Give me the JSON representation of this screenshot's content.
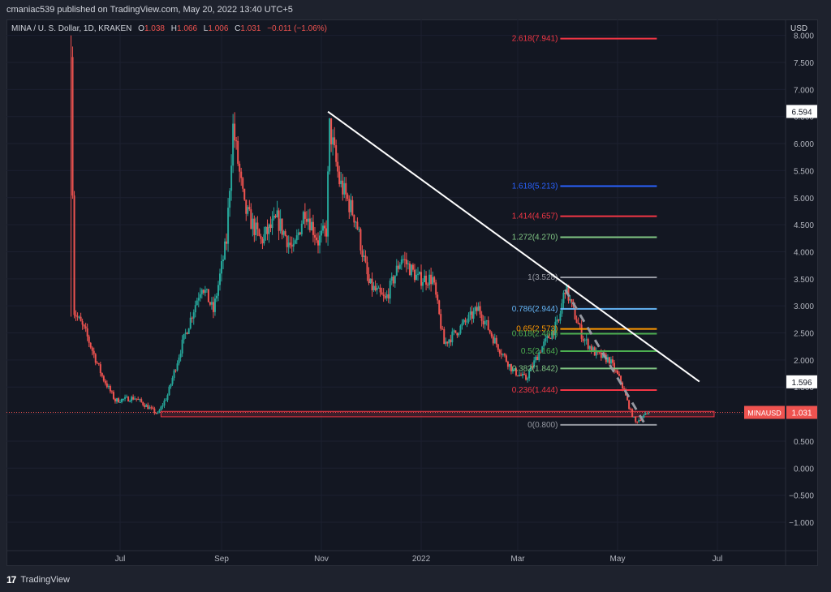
{
  "header": {
    "publisher_line": "cmaniac539 published on TradingView.com, May 20, 2022 13:40 UTC+5"
  },
  "footer": {
    "logo": "17",
    "brand": "TradingView"
  },
  "chart_data": {
    "type": "candlestick",
    "symbol_line": {
      "symbol": "MINA / U. S. Dollar, 1D, KRAKEN",
      "o_label": "O",
      "o": "1.038",
      "h_label": "H",
      "h": "1.066",
      "l_label": "L",
      "l": "1.006",
      "c_label": "C",
      "c": "1.031",
      "change": "−0.011 (−1.06%)"
    },
    "currency": "USD",
    "ylim": [
      -1.6,
      8.0
    ],
    "y_ticks": [
      "8.000",
      "7.500",
      "7.000",
      "6.500",
      "6.000",
      "5.500",
      "5.000",
      "4.500",
      "4.000",
      "3.500",
      "3.000",
      "2.500",
      "2.000",
      "1.500",
      "1.000",
      "0.500",
      "0.000",
      "−0.500",
      "−1.000"
    ],
    "x_ticks": [
      {
        "label": "Jul",
        "date": "2021-07-01"
      },
      {
        "label": "Sep",
        "date": "2021-09-01"
      },
      {
        "label": "Nov",
        "date": "2021-11-01"
      },
      {
        "label": "2022",
        "date": "2022-01-01"
      },
      {
        "label": "Mar",
        "date": "2022-03-01"
      },
      {
        "label": "May",
        "date": "2022-05-01"
      },
      {
        "label": "Jul",
        "date": "2022-07-01"
      }
    ],
    "price_anchors": [
      {
        "date": "2021-06-01",
        "price": 7.6
      },
      {
        "date": "2021-06-03",
        "price": 2.9
      },
      {
        "date": "2021-06-10",
        "price": 2.5
      },
      {
        "date": "2021-06-20",
        "price": 1.7
      },
      {
        "date": "2021-06-28",
        "price": 1.25
      },
      {
        "date": "2021-07-10",
        "price": 1.3
      },
      {
        "date": "2021-07-24",
        "price": 1.0
      },
      {
        "date": "2021-07-30",
        "price": 1.35
      },
      {
        "date": "2021-08-08",
        "price": 2.3
      },
      {
        "date": "2021-08-20",
        "price": 3.4
      },
      {
        "date": "2021-08-27",
        "price": 2.9
      },
      {
        "date": "2021-09-04",
        "price": 4.2
      },
      {
        "date": "2021-09-08",
        "price": 6.3
      },
      {
        "date": "2021-09-15",
        "price": 4.8
      },
      {
        "date": "2021-09-25",
        "price": 4.2
      },
      {
        "date": "2021-10-05",
        "price": 4.6
      },
      {
        "date": "2021-10-15",
        "price": 4.0
      },
      {
        "date": "2021-10-22",
        "price": 4.8
      },
      {
        "date": "2021-10-30",
        "price": 4.2
      },
      {
        "date": "2021-11-04",
        "price": 4.4
      },
      {
        "date": "2021-11-06",
        "price": 6.3
      },
      {
        "date": "2021-11-12",
        "price": 5.3
      },
      {
        "date": "2021-11-22",
        "price": 4.6
      },
      {
        "date": "2021-11-30",
        "price": 3.4
      },
      {
        "date": "2021-12-10",
        "price": 3.1
      },
      {
        "date": "2021-12-20",
        "price": 3.9
      },
      {
        "date": "2021-12-30",
        "price": 3.5
      },
      {
        "date": "2022-01-08",
        "price": 3.5
      },
      {
        "date": "2022-01-15",
        "price": 2.3
      },
      {
        "date": "2022-01-25",
        "price": 2.6
      },
      {
        "date": "2022-02-05",
        "price": 2.95
      },
      {
        "date": "2022-02-14",
        "price": 2.4
      },
      {
        "date": "2022-02-26",
        "price": 1.8
      },
      {
        "date": "2022-03-06",
        "price": 1.65
      },
      {
        "date": "2022-03-15",
        "price": 2.2
      },
      {
        "date": "2022-03-26",
        "price": 2.7
      },
      {
        "date": "2022-03-30",
        "price": 3.35
      },
      {
        "date": "2022-04-04",
        "price": 2.9
      },
      {
        "date": "2022-04-10",
        "price": 2.4
      },
      {
        "date": "2022-04-18",
        "price": 2.1
      },
      {
        "date": "2022-04-26",
        "price": 2.0
      },
      {
        "date": "2022-05-03",
        "price": 1.6
      },
      {
        "date": "2022-05-09",
        "price": 1.05
      },
      {
        "date": "2022-05-12",
        "price": 0.85
      },
      {
        "date": "2022-05-20",
        "price": 1.031
      }
    ],
    "fib_levels": [
      {
        "label": "2.618(7.941)",
        "value": 7.941,
        "color": "#f23645"
      },
      {
        "label": "1.618(5.213)",
        "value": 5.213,
        "color": "#2962ff"
      },
      {
        "label": "1.414(4.657)",
        "value": 4.657,
        "color": "#f23645"
      },
      {
        "label": "1.272(4.270)",
        "value": 4.27,
        "color": "#81c784"
      },
      {
        "label": "1(3.528)",
        "value": 3.528,
        "color": "#9598a1"
      },
      {
        "label": "0.786(2.944)",
        "value": 2.944,
        "color": "#64b5f6"
      },
      {
        "label": "0.65(2.573)",
        "value": 2.573,
        "color": "#ff9800"
      },
      {
        "label": "0.618(2.486)",
        "value": 2.486,
        "color": "#4caf50"
      },
      {
        "label": "0.5(2.164)",
        "value": 2.164,
        "color": "#4caf50"
      },
      {
        "label": "0.382(1.842)",
        "value": 1.842,
        "color": "#81c784"
      },
      {
        "label": "0.236(1.444)",
        "value": 1.444,
        "color": "#f23645"
      },
      {
        "label": "0(0.800)",
        "value": 0.8,
        "color": "#9598a1"
      }
    ],
    "price_tags": [
      {
        "label": "6.594",
        "value": 6.594,
        "style": "white"
      },
      {
        "label": "1.596",
        "value": 1.596,
        "style": "white"
      },
      {
        "label": "1.031",
        "value": 1.031,
        "style": "red",
        "symbol_tag": "MINAUSD"
      }
    ],
    "trendline": {
      "from": {
        "date": "2021-11-05",
        "price": 6.59
      },
      "to": {
        "date": "2022-06-20",
        "price": 1.6
      }
    },
    "projection": {
      "from": {
        "date": "2022-03-30",
        "price": 3.3
      },
      "to": {
        "date": "2022-05-18",
        "price": 0.8
      }
    },
    "support_zone": {
      "from_date": "2021-07-26",
      "to_date": "2022-06-29",
      "low": 0.95,
      "high": 1.05
    },
    "colors": {
      "up": "#26a69a",
      "down": "#ef5350",
      "background": "#131722",
      "grid": "#1e222d",
      "axis_text": "#b2b5be"
    }
  }
}
